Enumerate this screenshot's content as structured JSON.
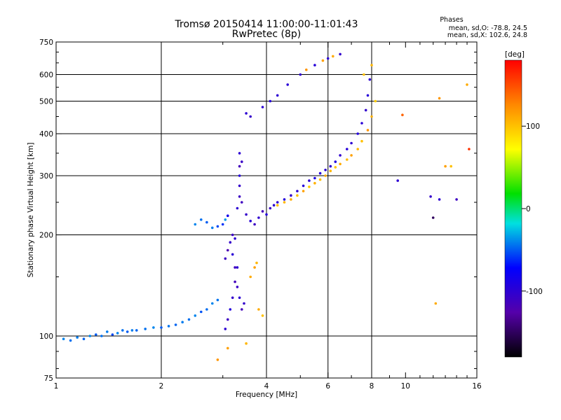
{
  "chart_data": {
    "type": "scatter",
    "title": "Tromsø 20150414 11:00:00-11:01:43",
    "subtitle": "RwPretec (8p)",
    "phase_stats": {
      "heading": "Phases",
      "line_o": "mean, sd,O: -78.8, 24.5",
      "line_x": "mean, sd,X: 102.6, 24.8"
    },
    "xlabel": "Frequency [MHz]",
    "ylabel": "Stationary phase Virtual Height [km]",
    "xscale": "log",
    "yscale": "log",
    "xlim": [
      1,
      16
    ],
    "ylim": [
      75,
      750
    ],
    "x_ticks": [
      {
        "v": 1,
        "label": "1"
      },
      {
        "v": 2,
        "label": "2"
      },
      {
        "v": 4,
        "label": "4"
      },
      {
        "v": 6,
        "label": "6"
      },
      {
        "v": 8,
        "label": "8"
      },
      {
        "v": 10,
        "label": "10"
      },
      {
        "v": 16,
        "label": "16"
      }
    ],
    "x_minor_ticks": [
      3,
      5,
      7,
      9,
      11,
      12,
      13,
      14,
      15
    ],
    "y_ticks": [
      {
        "v": 75,
        "label": "75"
      },
      {
        "v": 100,
        "label": "100"
      },
      {
        "v": 200,
        "label": "200"
      },
      {
        "v": 300,
        "label": "300"
      },
      {
        "v": 400,
        "label": "400"
      },
      {
        "v": 500,
        "label": "500"
      },
      {
        "v": 600,
        "label": "600"
      },
      {
        "v": 750,
        "label": "750"
      }
    ],
    "y_minor_ticks": [
      80,
      90,
      150,
      250,
      350,
      450,
      550,
      650,
      700
    ],
    "x_grid": [
      2,
      4,
      6,
      8
    ],
    "y_grid": [
      100,
      200,
      300,
      400,
      500,
      600
    ],
    "grid": true,
    "colorbar": {
      "label": "[deg]",
      "min": -180,
      "max": 180,
      "ticks": [
        {
          "v": 100,
          "label": "100"
        },
        {
          "v": 0,
          "label": "0"
        },
        {
          "v": -100,
          "label": "-100"
        }
      ]
    },
    "series": [
      {
        "points": [
          [
            1.05,
            98,
            -40
          ],
          [
            1.1,
            97,
            -45
          ],
          [
            1.15,
            99,
            -42
          ],
          [
            1.2,
            98,
            -48
          ],
          [
            1.25,
            100,
            -40
          ],
          [
            1.3,
            101,
            -50
          ],
          [
            1.35,
            100,
            -45
          ],
          [
            1.4,
            103,
            -42
          ],
          [
            1.45,
            101,
            -55
          ],
          [
            1.5,
            102,
            -40
          ],
          [
            1.55,
            104,
            -45
          ],
          [
            1.6,
            103,
            -50
          ],
          [
            1.65,
            104,
            -42
          ],
          [
            1.7,
            104,
            -48
          ],
          [
            1.8,
            105,
            -45
          ],
          [
            1.9,
            106,
            -40
          ],
          [
            2.0,
            106,
            -50
          ],
          [
            2.1,
            107,
            -44
          ],
          [
            2.2,
            108,
            -48
          ],
          [
            2.3,
            110,
            -42
          ],
          [
            2.4,
            112,
            -45
          ],
          [
            2.5,
            115,
            -40
          ],
          [
            2.6,
            118,
            -52
          ],
          [
            2.7,
            120,
            -46
          ],
          [
            2.8,
            125,
            -40
          ],
          [
            2.9,
            128,
            -44
          ]
        ]
      },
      {
        "points": [
          [
            2.5,
            215,
            -40
          ],
          [
            2.6,
            222,
            -45
          ],
          [
            2.7,
            218,
            -50
          ],
          [
            2.8,
            210,
            -42
          ],
          [
            2.9,
            212,
            -55
          ],
          [
            3.0,
            215,
            -60
          ],
          [
            3.05,
            222,
            -35
          ],
          [
            3.1,
            228,
            -85
          ]
        ]
      },
      {
        "points": [
          [
            3.05,
            105,
            -100
          ],
          [
            3.1,
            112,
            -110
          ],
          [
            3.15,
            120,
            -95
          ],
          [
            3.2,
            130,
            -105
          ],
          [
            3.25,
            145,
            -115
          ],
          [
            3.3,
            160,
            -100
          ],
          [
            3.05,
            170,
            -110
          ],
          [
            3.1,
            180,
            -120
          ],
          [
            3.15,
            190,
            -105
          ],
          [
            3.2,
            175,
            -98
          ],
          [
            3.25,
            160,
            -112
          ],
          [
            3.3,
            140,
            -108
          ],
          [
            3.35,
            130,
            -100
          ],
          [
            3.4,
            120,
            -115
          ],
          [
            3.45,
            125,
            -105
          ],
          [
            3.2,
            200,
            -110
          ],
          [
            3.25,
            195,
            -100
          ]
        ]
      },
      {
        "points": [
          [
            3.3,
            240,
            -100
          ],
          [
            3.35,
            260,
            -110
          ],
          [
            3.35,
            280,
            -105
          ],
          [
            3.35,
            300,
            -95
          ],
          [
            3.35,
            320,
            -115
          ],
          [
            3.35,
            350,
            -100
          ],
          [
            3.4,
            330,
            -108
          ],
          [
            3.4,
            250,
            -112
          ],
          [
            3.5,
            230,
            -105
          ],
          [
            3.6,
            220,
            -98
          ],
          [
            3.7,
            215,
            -110
          ],
          [
            3.8,
            225,
            -102
          ],
          [
            3.9,
            235,
            -115
          ],
          [
            4.0,
            230,
            -95
          ],
          [
            4.1,
            240,
            -108
          ],
          [
            4.2,
            245,
            -100
          ]
        ]
      },
      {
        "points": [
          [
            4.3,
            250,
            -100
          ],
          [
            4.5,
            255,
            -95
          ],
          [
            4.7,
            262,
            -105
          ],
          [
            4.9,
            270,
            -100
          ],
          [
            5.1,
            280,
            -95
          ],
          [
            5.3,
            290,
            -100
          ],
          [
            5.5,
            295,
            -90
          ],
          [
            5.7,
            305,
            -95
          ],
          [
            5.9,
            312,
            -100
          ],
          [
            6.1,
            320,
            -98
          ],
          [
            6.3,
            330,
            -92
          ],
          [
            6.5,
            345,
            -102
          ],
          [
            6.8,
            360,
            -96
          ],
          [
            7.0,
            375,
            -100
          ],
          [
            7.3,
            400,
            -94
          ],
          [
            7.5,
            430,
            -98
          ],
          [
            7.7,
            470,
            -104
          ],
          [
            7.8,
            520,
            -96
          ],
          [
            7.9,
            580,
            -100
          ]
        ]
      },
      {
        "points": [
          [
            4.3,
            245,
            100
          ],
          [
            4.5,
            250,
            105
          ],
          [
            4.7,
            255,
            110
          ],
          [
            4.9,
            262,
            100
          ],
          [
            5.1,
            270,
            115
          ],
          [
            5.3,
            278,
            95
          ],
          [
            5.5,
            285,
            108
          ],
          [
            5.7,
            292,
            100
          ],
          [
            5.9,
            300,
            112
          ],
          [
            6.1,
            310,
            104
          ],
          [
            6.3,
            318,
            98
          ],
          [
            6.5,
            325,
            110
          ],
          [
            6.8,
            335,
            102
          ],
          [
            7.0,
            345,
            115
          ],
          [
            7.3,
            360,
            105
          ],
          [
            7.5,
            380,
            100
          ],
          [
            7.8,
            410,
            120
          ],
          [
            8.0,
            450,
            108
          ],
          [
            8.2,
            500,
            95
          ]
        ]
      },
      {
        "points": [
          [
            3.6,
            150,
            110
          ],
          [
            3.7,
            160,
            115
          ],
          [
            3.75,
            165,
            105
          ],
          [
            3.8,
            120,
            110
          ],
          [
            3.9,
            115,
            100
          ]
        ]
      },
      {
        "points": [
          [
            3.5,
            460,
            -100
          ],
          [
            3.6,
            450,
            -105
          ],
          [
            3.9,
            480,
            -100
          ],
          [
            4.1,
            500,
            -95
          ],
          [
            4.3,
            520,
            -100
          ],
          [
            4.6,
            560,
            -98
          ],
          [
            5.0,
            600,
            -102
          ],
          [
            5.5,
            640,
            -96
          ],
          [
            6.0,
            670,
            -100
          ],
          [
            6.5,
            690,
            -104
          ]
        ]
      },
      {
        "points": [
          [
            5.2,
            620,
            120
          ],
          [
            5.8,
            660,
            115
          ],
          [
            6.2,
            680,
            110
          ],
          [
            7.6,
            600,
            100
          ],
          [
            8.0,
            640,
            105
          ],
          [
            9.8,
            455,
            140
          ],
          [
            12.5,
            510,
            120
          ],
          [
            13.5,
            320,
            100
          ],
          [
            15.0,
            560,
            110
          ],
          [
            15.2,
            360,
            160
          ]
        ]
      },
      {
        "points": [
          [
            9.5,
            290,
            -100
          ],
          [
            11.8,
            260,
            -105
          ],
          [
            12.0,
            225,
            -150
          ],
          [
            12.5,
            255,
            -100
          ],
          [
            14.0,
            255,
            -110
          ]
        ]
      },
      {
        "points": [
          [
            2.9,
            85,
            120
          ],
          [
            3.1,
            92,
            115
          ],
          [
            3.5,
            95,
            105
          ],
          [
            12.2,
            125,
            110
          ],
          [
            13.0,
            320,
            115
          ]
        ]
      }
    ]
  }
}
